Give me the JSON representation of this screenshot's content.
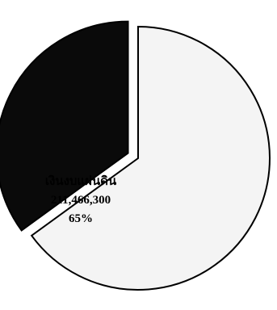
{
  "chart_data": {
    "type": "pie",
    "title": "",
    "slices": [
      {
        "label": "เงินงบแผ่นดิน",
        "value": 211466300,
        "value_text": "211,466,300",
        "percent": 65,
        "percent_text": "65%",
        "color": "#f4f4f4",
        "exploded": false
      },
      {
        "label": "",
        "value": null,
        "value_text": "",
        "percent": 35,
        "percent_text": "",
        "color": "#0a0a0a",
        "exploded": true
      }
    ],
    "legend": "none"
  }
}
